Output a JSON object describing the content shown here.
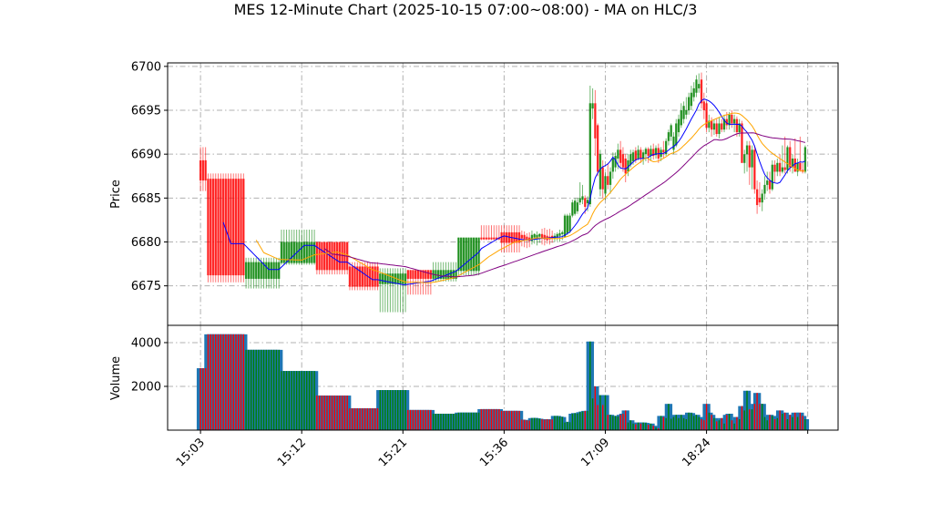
{
  "chart_data": {
    "type": "candlestick",
    "title": "MES 12-Minute Chart (2025-10-15 07:00~08:00) - MA on HLC/3",
    "price_panel": {
      "ylabel": "Price",
      "ylim": [
        6670.5,
        6700.4
      ],
      "yticks": [
        6675,
        6680,
        6685,
        6690,
        6695,
        6700
      ],
      "grid": true
    },
    "volume_panel": {
      "ylabel": "Volume",
      "ylim": [
        0,
        4790
      ],
      "yticks": [
        2000,
        4000
      ],
      "grid": true
    },
    "xlim": [
      -13,
      252
    ],
    "xticks": [
      {
        "index": 0,
        "label": "15:03"
      },
      {
        "index": 40,
        "label": "15:12"
      },
      {
        "index": 80,
        "label": "15:21"
      },
      {
        "index": 120,
        "label": "15:36"
      },
      {
        "index": 160,
        "label": "17:09"
      },
      {
        "index": 200,
        "label": "18:24"
      },
      {
        "index": 240,
        "label": ""
      }
    ],
    "moving_averages": [
      {
        "period": 10,
        "source": "HLC/3",
        "color": "#0000ff"
      },
      {
        "period": 23,
        "source": "HLC/3",
        "color": "#ffa500"
      },
      {
        "period": 50,
        "source": "HLC/3",
        "color": "#800080"
      }
    ],
    "colors": {
      "up": "#008000",
      "down": "#ff0000",
      "volume_base": "#1f77b4",
      "grid": "#b0b0b0"
    },
    "bar_fields": [
      "repeat",
      "open",
      "high",
      "low",
      "close",
      "volume"
    ],
    "bars": [
      [
        3,
        6689.3,
        6690.8,
        6685.8,
        6687.0,
        2830
      ],
      [
        15,
        6687.2,
        6687.8,
        6675.4,
        6676.2,
        4380
      ],
      [
        14,
        6675.8,
        6678.2,
        6674.7,
        6677.7,
        3670
      ],
      [
        14,
        6677.6,
        6681.4,
        6677.4,
        6680.0,
        2700
      ],
      [
        13,
        6680.0,
        6680.0,
        6676.3,
        6676.8,
        1580
      ],
      [
        12,
        6677.2,
        6677.7,
        6674.5,
        6674.9,
        1000
      ],
      [
        11,
        6675.2,
        6677.0,
        6672.0,
        6676.4,
        1830
      ],
      [
        10,
        6676.8,
        6676.8,
        6674.0,
        6675.8,
        920
      ],
      [
        10,
        6675.8,
        6677.7,
        6675.5,
        6676.8,
        750
      ],
      [
        9,
        6676.7,
        6680.5,
        6676.2,
        6680.5,
        800
      ],
      [
        8,
        6680.5,
        6681.9,
        6680.2,
        6680.3,
        960
      ],
      [
        8,
        6681.1,
        6681.9,
        6678.8,
        6679.9,
        880
      ],
      [
        1,
        6680.8,
        6681.3,
        6679.5,
        6680.4,
        480
      ],
      [
        1,
        6680.8,
        6681.2,
        6679.4,
        6680.3,
        470
      ],
      [
        1,
        6680.6,
        6681.0,
        6679.3,
        6680.2,
        450
      ],
      [
        1,
        6680.5,
        6681.1,
        6679.4,
        6680.1,
        440
      ],
      [
        1,
        6680.1,
        6681.3,
        6679.7,
        6680.8,
        550
      ],
      [
        1,
        6680.5,
        6681.0,
        6679.8,
        6680.9,
        560
      ],
      [
        1,
        6680.3,
        6681.2,
        6679.6,
        6680.8,
        540
      ],
      [
        1,
        6680.6,
        6681.0,
        6679.9,
        6680.9,
        520
      ],
      [
        1,
        6680.9,
        6681.5,
        6679.7,
        6680.4,
        500
      ],
      [
        1,
        6680.8,
        6681.6,
        6679.6,
        6680.3,
        480
      ],
      [
        1,
        6680.7,
        6681.4,
        6679.8,
        6680.2,
        500
      ],
      [
        1,
        6680.6,
        6681.5,
        6679.7,
        6680.3,
        480
      ],
      [
        1,
        6680.7,
        6681.3,
        6679.9,
        6680.4,
        490
      ],
      [
        1,
        6680.4,
        6681.0,
        6680.0,
        6680.7,
        650
      ],
      [
        1,
        6680.5,
        6681.1,
        6680.1,
        6680.9,
        650
      ],
      [
        1,
        6680.7,
        6681.4,
        6680.0,
        6681.0,
        620
      ],
      [
        1,
        6680.9,
        6681.3,
        6680.2,
        6681.1,
        600
      ],
      [
        1,
        6680.6,
        6683.2,
        6680.5,
        6683.0,
        350
      ],
      [
        1,
        6681.0,
        6683.2,
        6680.8,
        6683.0,
        380
      ],
      [
        1,
        6681.2,
        6683.3,
        6681.0,
        6683.0,
        360
      ],
      [
        1,
        6683.0,
        6684.8,
        6682.8,
        6684.5,
        750
      ],
      [
        1,
        6683.2,
        6685.0,
        6683.0,
        6684.7,
        780
      ],
      [
        1,
        6683.5,
        6685.0,
        6683.2,
        6684.5,
        760
      ],
      [
        1,
        6684.5,
        6686.8,
        6684.2,
        6685.0,
        820
      ],
      [
        1,
        6684.8,
        6686.5,
        6684.3,
        6685.2,
        850
      ],
      [
        1,
        6685.0,
        6685.3,
        6683.2,
        6684.0,
        880
      ],
      [
        1,
        6684.4,
        6685.2,
        6683.5,
        6684.8,
        880
      ],
      [
        1,
        6684.3,
        6697.8,
        6684.0,
        6695.8,
        4050
      ],
      [
        1,
        6695.2,
        6697.5,
        6694.0,
        6695.8,
        1450
      ],
      [
        1,
        6695.8,
        6697.3,
        6689.8,
        6691.8,
        2000
      ],
      [
        1,
        6693.3,
        6693.5,
        6687.5,
        6688.0,
        1150
      ],
      [
        1,
        6686.0,
        6690.5,
        6685.2,
        6690.0,
        1600
      ],
      [
        1,
        6688.5,
        6689.3,
        6685.0,
        6686.0,
        1150
      ],
      [
        1,
        6685.5,
        6688.0,
        6684.8,
        6687.5,
        1600
      ],
      [
        1,
        6687.5,
        6689.0,
        6686.0,
        6686.5,
        700
      ],
      [
        1,
        6686.5,
        6688.5,
        6685.5,
        6688.0,
        700
      ],
      [
        1,
        6688.0,
        6690.2,
        6687.2,
        6689.5,
        650
      ],
      [
        1,
        6688.5,
        6690.2,
        6688.0,
        6689.8,
        650
      ],
      [
        1,
        6689.5,
        6691.2,
        6688.3,
        6690.5,
        620
      ],
      [
        1,
        6690.5,
        6691.5,
        6688.5,
        6689.0,
        700
      ],
      [
        1,
        6690.0,
        6690.8,
        6688.0,
        6688.5,
        750
      ],
      [
        1,
        6689.5,
        6690.0,
        6686.8,
        6687.8,
        900
      ],
      [
        1,
        6688.0,
        6690.0,
        6687.5,
        6689.3,
        350
      ],
      [
        1,
        6688.8,
        6690.5,
        6688.5,
        6690.0,
        450
      ],
      [
        1,
        6689.2,
        6690.5,
        6688.8,
        6690.2,
        300
      ],
      [
        1,
        6690.4,
        6690.8,
        6689.0,
        6689.3,
        270
      ],
      [
        1,
        6689.5,
        6691.0,
        6689.3,
        6690.5,
        350
      ],
      [
        1,
        6690.5,
        6690.8,
        6689.0,
        6689.5,
        300
      ],
      [
        1,
        6689.5,
        6690.5,
        6688.8,
        6690.2,
        350
      ],
      [
        1,
        6690.0,
        6690.8,
        6689.2,
        6690.6,
        330
      ],
      [
        1,
        6690.6,
        6690.8,
        6689.0,
        6689.8,
        250
      ],
      [
        1,
        6689.8,
        6691.0,
        6689.3,
        6690.6,
        300
      ],
      [
        1,
        6690.6,
        6691.2,
        6689.4,
        6689.8,
        200
      ],
      [
        1,
        6689.9,
        6691.0,
        6689.5,
        6690.7,
        120
      ],
      [
        1,
        6690.7,
        6691.2,
        6689.0,
        6689.5,
        80
      ],
      [
        1,
        6689.7,
        6690.8,
        6689.2,
        6690.5,
        650
      ],
      [
        1,
        6690.5,
        6691.5,
        6689.5,
        6690.2,
        600
      ],
      [
        1,
        6690.0,
        6691.8,
        6689.8,
        6691.5,
        550
      ],
      [
        1,
        6691.5,
        6692.8,
        6691.0,
        6692.5,
        1200
      ],
      [
        1,
        6692.0,
        6693.5,
        6691.5,
        6693.3,
        520
      ],
      [
        1,
        6690.5,
        6692.5,
        6690.0,
        6692.0,
        600
      ],
      [
        1,
        6691.0,
        6694.0,
        6690.8,
        6693.5,
        700
      ],
      [
        1,
        6692.5,
        6694.5,
        6692.0,
        6694.0,
        550
      ],
      [
        1,
        6693.3,
        6695.8,
        6693.0,
        6695.0,
        700
      ],
      [
        1,
        6694.0,
        6696.0,
        6693.5,
        6695.5,
        550
      ],
      [
        1,
        6694.5,
        6696.5,
        6694.0,
        6695.0,
        500
      ],
      [
        1,
        6695.0,
        6697.0,
        6694.5,
        6696.5,
        800
      ],
      [
        1,
        6695.5,
        6697.8,
        6695.0,
        6697.0,
        780
      ],
      [
        1,
        6696.5,
        6698.2,
        6696.0,
        6697.5,
        650
      ],
      [
        1,
        6697.0,
        6699.0,
        6696.5,
        6698.5,
        700
      ],
      [
        1,
        6697.5,
        6699.2,
        6697.0,
        6698.0,
        600
      ],
      [
        1,
        6698.5,
        6699.3,
        6695.2,
        6695.8,
        500
      ],
      [
        1,
        6696.0,
        6697.0,
        6694.0,
        6695.0,
        450
      ],
      [
        1,
        6695.8,
        6696.0,
        6692.5,
        6693.0,
        1200
      ],
      [
        1,
        6693.0,
        6694.5,
        6692.5,
        6693.8,
        800
      ],
      [
        1,
        6693.8,
        6694.2,
        6692.0,
        6692.8,
        700
      ],
      [
        1,
        6692.8,
        6694.0,
        6692.2,
        6693.5,
        550
      ],
      [
        1,
        6693.5,
        6694.0,
        6692.0,
        6692.3,
        400
      ],
      [
        1,
        6692.3,
        6694.2,
        6691.8,
        6693.5,
        450
      ],
      [
        1,
        6693.5,
        6694.0,
        6692.5,
        6692.8,
        550
      ],
      [
        1,
        6692.8,
        6694.5,
        6692.5,
        6694.0,
        300
      ],
      [
        1,
        6694.0,
        6694.8,
        6692.8,
        6693.3,
        700
      ],
      [
        1,
        6693.3,
        6694.8,
        6692.8,
        6694.5,
        750
      ],
      [
        1,
        6694.5,
        6695.0,
        6693.0,
        6693.5,
        450
      ],
      [
        1,
        6693.5,
        6694.5,
        6692.5,
        6694.0,
        300
      ],
      [
        1,
        6694.0,
        6694.3,
        6692.0,
        6692.5,
        600
      ],
      [
        1,
        6692.5,
        6694.0,
        6692.0,
        6693.5,
        500
      ],
      [
        1,
        6693.5,
        6693.8,
        6689.0,
        6689.0,
        1100
      ],
      [
        1,
        6689.0,
        6690.5,
        6687.8,
        6690.0,
        900
      ],
      [
        1,
        6690.0,
        6691.5,
        6688.0,
        6691.0,
        1800
      ],
      [
        1,
        6691.0,
        6691.5,
        6686.5,
        6688.5,
        950
      ],
      [
        1,
        6688.5,
        6691.0,
        6686.0,
        6690.5,
        950
      ],
      [
        1,
        6690.5,
        6691.0,
        6685.5,
        6686.0,
        1200
      ],
      [
        1,
        6686.0,
        6687.0,
        6683.2,
        6684.2,
        1700
      ],
      [
        1,
        6685.0,
        6686.8,
        6684.0,
        6684.5,
        1200
      ],
      [
        1,
        6684.5,
        6686.0,
        6683.5,
        6685.5,
        1200
      ],
      [
        1,
        6685.5,
        6687.5,
        6684.8,
        6686.5,
        600
      ],
      [
        1,
        6686.5,
        6688.0,
        6685.8,
        6687.0,
        450
      ],
      [
        1,
        6687.0,
        6688.0,
        6685.5,
        6686.0,
        700
      ],
      [
        1,
        6686.0,
        6689.3,
        6685.8,
        6688.8,
        650
      ],
      [
        1,
        6688.8,
        6689.3,
        6686.8,
        6688.0,
        500
      ],
      [
        1,
        6688.0,
        6689.5,
        6687.5,
        6689.0,
        550
      ],
      [
        1,
        6689.0,
        6690.0,
        6687.5,
        6688.0,
        900
      ],
      [
        1,
        6688.0,
        6691.0,
        6687.8,
        6688.5,
        750
      ],
      [
        1,
        6688.5,
        6692.0,
        6687.8,
        6688.2,
        800
      ],
      [
        1,
        6688.2,
        6691.0,
        6687.8,
        6690.8,
        500
      ],
      [
        1,
        6690.8,
        6691.5,
        6688.0,
        6688.5,
        700
      ],
      [
        1,
        6688.5,
        6690.0,
        6687.8,
        6689.5,
        600
      ],
      [
        1,
        6689.5,
        6691.8,
        6688.0,
        6688.0,
        800
      ],
      [
        1,
        6688.0,
        6689.5,
        6687.5,
        6689.0,
        600
      ],
      [
        1,
        6689.0,
        6692.0,
        6688.0,
        6688.2,
        800
      ],
      [
        1,
        6688.2,
        6689.0,
        6687.8,
        6688.0,
        650
      ],
      [
        1,
        6688.0,
        6691.0,
        6687.8,
        6690.8,
        500
      ]
    ]
  }
}
